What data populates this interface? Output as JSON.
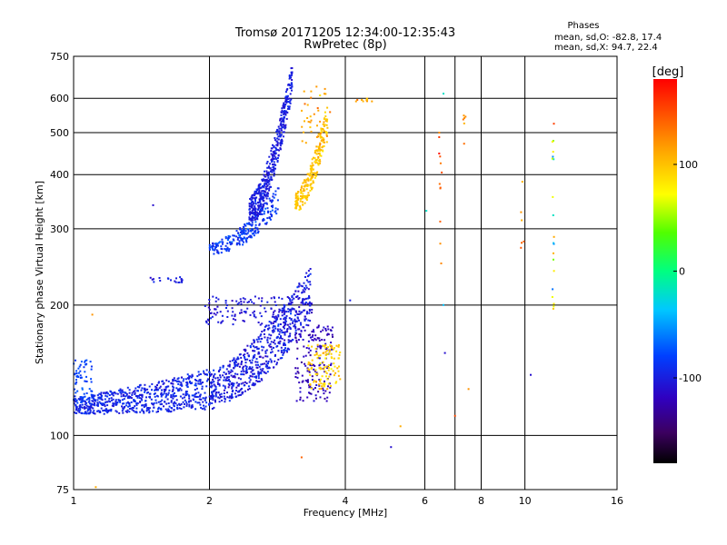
{
  "chart_data": {
    "type": "scatter",
    "title": "Tromsø 20171205 12:34:00-12:35:43",
    "subtitle": "RwPretec (8p)",
    "xlabel": "Frequency [MHz]",
    "ylabel": "Stationary phase Virtual Height [km]",
    "x_scale": "log",
    "y_scale": "log",
    "xlim": [
      1,
      16
    ],
    "ylim": [
      75,
      750
    ],
    "x_ticks": [
      1,
      2,
      4,
      6,
      8,
      10,
      16
    ],
    "x_tick_labels": [
      "1",
      "2",
      "4",
      "6",
      "8",
      "10",
      "16"
    ],
    "x_grid": [
      2,
      4,
      6,
      7,
      8,
      10
    ],
    "y_ticks": [
      75,
      100,
      200,
      300,
      400,
      500,
      600,
      750
    ],
    "y_tick_labels": [
      "75",
      "100",
      "200",
      "300",
      "400",
      "500",
      "600",
      "750"
    ],
    "y_grid": [
      100,
      200,
      300,
      400,
      500,
      600
    ],
    "grid": true,
    "stats": {
      "heading": "Phases",
      "line_o": "mean, sd,O: -82.8, 17.4",
      "line_x": "mean, sd,X: 94.7, 22.4"
    },
    "colorbar": {
      "label": "[deg]",
      "range": [
        -180,
        180
      ],
      "ticks": [
        100,
        0,
        -100
      ],
      "tick_labels": [
        "100",
        "0",
        "-100"
      ]
    },
    "series": [
      {
        "marker_color_by": "phase_deg",
        "clusters": [
          {
            "kind": "arc",
            "f_start": 1.0,
            "f_end": 2.05,
            "h_start": 112,
            "h_end": 115,
            "h_spread": 28,
            "phase_mean": -95,
            "phase_sd": 12,
            "count": 650
          },
          {
            "kind": "band",
            "f_start": 1.0,
            "f_end": 1.1,
            "h_lo": 118,
            "h_hi": 150,
            "phase_mean": -80,
            "phase_sd": 10,
            "count": 60
          },
          {
            "kind": "arc",
            "f_start": 2.0,
            "f_end": 3.35,
            "h_start": 118,
            "h_end": 185,
            "h_spread": 60,
            "phase_mean": -100,
            "phase_sd": 15,
            "count": 620
          },
          {
            "kind": "band",
            "f_start": 1.95,
            "f_end": 3.4,
            "h_lo": 180,
            "h_hi": 210,
            "phase_mean": -105,
            "phase_sd": 12,
            "count": 150
          },
          {
            "kind": "band",
            "f_start": 3.1,
            "f_end": 3.75,
            "h_lo": 120,
            "h_hi": 180,
            "phase_mean": -120,
            "phase_sd": 12,
            "count": 170
          },
          {
            "kind": "band",
            "f_start": 3.3,
            "f_end": 3.9,
            "h_lo": 128,
            "h_hi": 162,
            "phase_mean": 95,
            "phase_sd": 18,
            "count": 110
          },
          {
            "kind": "arc",
            "f_start": 2.0,
            "f_end": 2.85,
            "h_start": 262,
            "h_end": 330,
            "h_spread": 45,
            "phase_mean": -85,
            "phase_sd": 15,
            "count": 230
          },
          {
            "kind": "arc",
            "f_start": 2.45,
            "f_end": 3.05,
            "h_start": 310,
            "h_end": 600,
            "h_spread": 120,
            "phase_mean": -100,
            "phase_sd": 12,
            "count": 470
          },
          {
            "kind": "arc",
            "f_start": 3.1,
            "f_end": 3.65,
            "h_start": 330,
            "h_end": 500,
            "h_spread": 90,
            "phase_mean": 100,
            "phase_sd": 15,
            "count": 220
          },
          {
            "kind": "band",
            "f_start": 3.2,
            "f_end": 3.7,
            "h_lo": 470,
            "h_hi": 640,
            "phase_mean": 110,
            "phase_sd": 20,
            "count": 40
          },
          {
            "kind": "band",
            "f_start": 1.45,
            "f_end": 1.75,
            "h_lo": 225,
            "h_hi": 232,
            "phase_mean": -100,
            "phase_sd": 10,
            "count": 20
          },
          {
            "kind": "band",
            "f_start": 4.2,
            "f_end": 4.6,
            "h_lo": 590,
            "h_hi": 600,
            "phase_mean": 110,
            "phase_sd": 20,
            "count": 10
          },
          {
            "kind": "band",
            "f_start": 6.45,
            "f_end": 6.55,
            "h_lo": 230,
            "h_hi": 560,
            "phase_mean": 140,
            "phase_sd": 30,
            "count": 12
          },
          {
            "kind": "band",
            "f_start": 7.3,
            "f_end": 7.4,
            "h_lo": 470,
            "h_hi": 560,
            "phase_mean": 120,
            "phase_sd": 15,
            "count": 6
          },
          {
            "kind": "band",
            "f_start": 9.7,
            "f_end": 10.0,
            "h_lo": 260,
            "h_hi": 500,
            "phase_mean": 130,
            "phase_sd": 20,
            "count": 6
          },
          {
            "kind": "band",
            "f_start": 11.5,
            "f_end": 11.6,
            "h_lo": 195,
            "h_hi": 530,
            "phase_mean": 20,
            "phase_sd": 110,
            "count": 20
          }
        ],
        "points": [
          {
            "x": 5.05,
            "y": 94,
            "phase": -110
          },
          {
            "x": 5.3,
            "y": 105,
            "phase": 110
          },
          {
            "x": 3.2,
            "y": 89,
            "phase": 140
          },
          {
            "x": 1.12,
            "y": 76,
            "phase": 110
          },
          {
            "x": 1.1,
            "y": 190,
            "phase": 120
          },
          {
            "x": 6.05,
            "y": 330,
            "phase": -20
          },
          {
            "x": 6.6,
            "y": 200,
            "phase": -40
          },
          {
            "x": 6.65,
            "y": 155,
            "phase": -110
          },
          {
            "x": 6.6,
            "y": 615,
            "phase": -20
          },
          {
            "x": 7.0,
            "y": 111,
            "phase": 150
          },
          {
            "x": 7.5,
            "y": 128,
            "phase": 120
          },
          {
            "x": 10.3,
            "y": 138,
            "phase": -110
          },
          {
            "x": 1.5,
            "y": 340,
            "phase": -110
          },
          {
            "x": 4.1,
            "y": 205,
            "phase": -100
          }
        ]
      }
    ]
  }
}
